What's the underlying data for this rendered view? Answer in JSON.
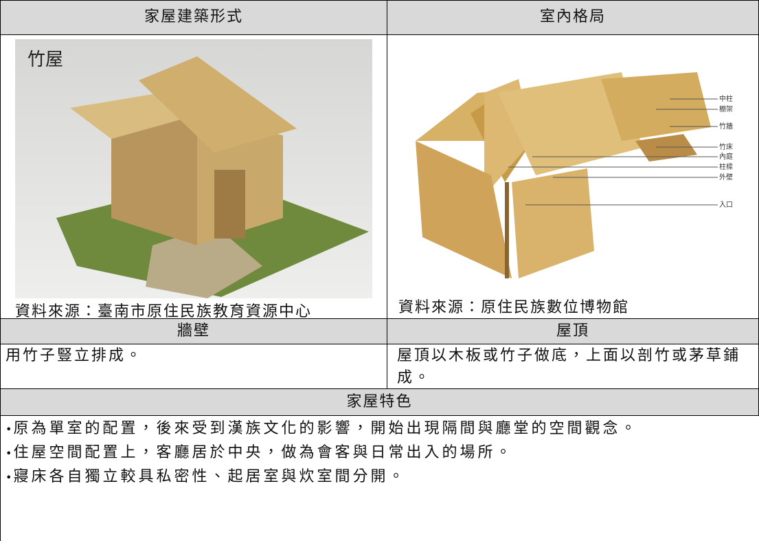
{
  "table": {
    "headers": [
      "家屋建築形式",
      "室內格局"
    ],
    "images": [
      {
        "label": "竹屋",
        "caption": "資料來源：臺南市原住民族教育資源中心"
      },
      {
        "labels": [
          "中柱",
          "棚架",
          "竹牆",
          "竹床",
          "內庭",
          "柱樑",
          "外壁",
          "入口"
        ],
        "caption": "資料來源：原住民族數位博物館"
      }
    ],
    "subheaders": [
      "牆壁",
      "屋頂"
    ],
    "cells": [
      "用竹子豎立排成。",
      "屋頂以木板或竹子做底，上面以剖竹或茅草鋪成。"
    ],
    "feature_header": "家屋特色",
    "features": [
      "原為單室的配置，後來受到漢族文化的影響，開始出現隔間與廳堂的空間觀念。",
      "住屋空間配置上，客廳居於中央，做為會客與日常出入的場所。",
      "寢床各自獨立較具私密性、起居室與炊室間分開。"
    ]
  }
}
